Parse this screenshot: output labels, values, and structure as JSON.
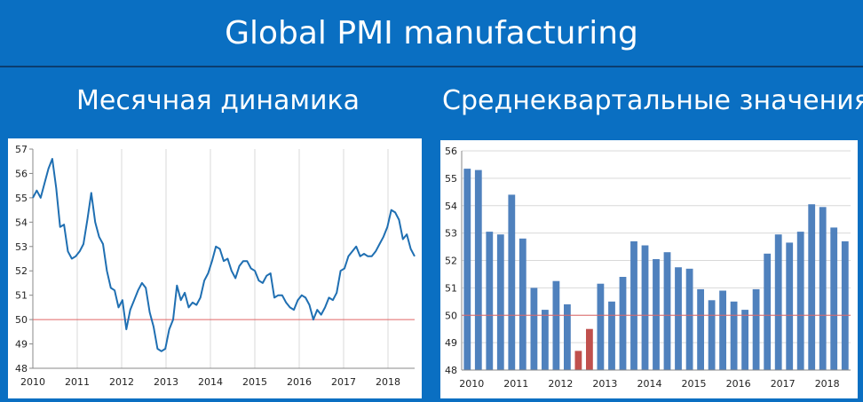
{
  "header": {
    "title": "Global PMI manufacturing",
    "left_subtitle": "Месячная динамика",
    "right_subtitle": "Среднеквартальные значения"
  },
  "colors": {
    "background": "#0a6fc2",
    "line": "#1f6fb2",
    "bar": "#4f81bd",
    "bar_highlight": "#c0504d",
    "reference_line": "#e06666"
  },
  "chart_data": [
    {
      "type": "line",
      "ylim": [
        48,
        57
      ],
      "yticks": [
        48,
        49,
        50,
        51,
        52,
        53,
        54,
        55,
        56,
        57
      ],
      "xlim": [
        2010,
        2018.6
      ],
      "xticks": [
        "2010",
        "2011",
        "2012",
        "2013",
        "2014",
        "2015",
        "2016",
        "2017",
        "2018"
      ],
      "reference_line": 50,
      "grid": "vertical",
      "series": [
        {
          "values": [
            55.0,
            55.3,
            55.0,
            55.6,
            56.2,
            56.6,
            55.4,
            53.8,
            53.9,
            52.8,
            52.5,
            52.6,
            52.8,
            53.1,
            54.1,
            55.2,
            54.0,
            53.4,
            53.1,
            52.0,
            51.3,
            51.2,
            50.5,
            50.8,
            49.6,
            50.4,
            50.8,
            51.2,
            51.5,
            51.3,
            50.3,
            49.7,
            48.8,
            48.7,
            48.8,
            49.6,
            50.0,
            51.4,
            50.8,
            51.1,
            50.5,
            50.7,
            50.6,
            50.9,
            51.6,
            51.9,
            52.4,
            53.0,
            52.9,
            52.4,
            52.5,
            52.0,
            51.7,
            52.2,
            52.4,
            52.4,
            52.1,
            52.0,
            51.6,
            51.5,
            51.8,
            51.9,
            50.9,
            51.0,
            51.0,
            50.7,
            50.5,
            50.4,
            50.8,
            51.0,
            50.9,
            50.6,
            50.0,
            50.4,
            50.2,
            50.5,
            50.9,
            50.8,
            51.1,
            52.0,
            52.1,
            52.6,
            52.8,
            53.0,
            52.6,
            52.7,
            52.6,
            52.6,
            52.8,
            53.1,
            53.4,
            53.8,
            54.5,
            54.4,
            54.1,
            53.3,
            53.5,
            52.9,
            52.6
          ]
        }
      ]
    },
    {
      "type": "bar",
      "ylim": [
        48,
        56
      ],
      "yticks": [
        48,
        49,
        50,
        51,
        52,
        53,
        54,
        55,
        56
      ],
      "xticks": [
        "2010",
        "2011",
        "2012",
        "2013",
        "2014",
        "2015",
        "2016",
        "2017",
        "2018"
      ],
      "reference_line": 50,
      "grid": "horizontal",
      "series": [
        {
          "values": [
            55.35,
            55.3,
            53.05,
            52.95,
            54.4,
            52.8,
            51.0,
            50.2,
            51.25,
            50.4,
            48.7,
            49.5,
            51.15,
            50.5,
            51.4,
            52.7,
            52.55,
            52.05,
            52.3,
            51.75,
            51.7,
            50.95,
            50.55,
            50.9,
            50.5,
            50.2,
            50.95,
            52.25,
            52.95,
            52.65,
            53.05,
            54.05,
            53.95,
            53.2,
            52.7
          ],
          "highlight": [
            false,
            false,
            false,
            false,
            false,
            false,
            false,
            false,
            false,
            false,
            true,
            true,
            false,
            false,
            false,
            false,
            false,
            false,
            false,
            false,
            false,
            false,
            false,
            false,
            false,
            false,
            false,
            false,
            false,
            false,
            false,
            false,
            false,
            false,
            false
          ]
        }
      ]
    }
  ]
}
